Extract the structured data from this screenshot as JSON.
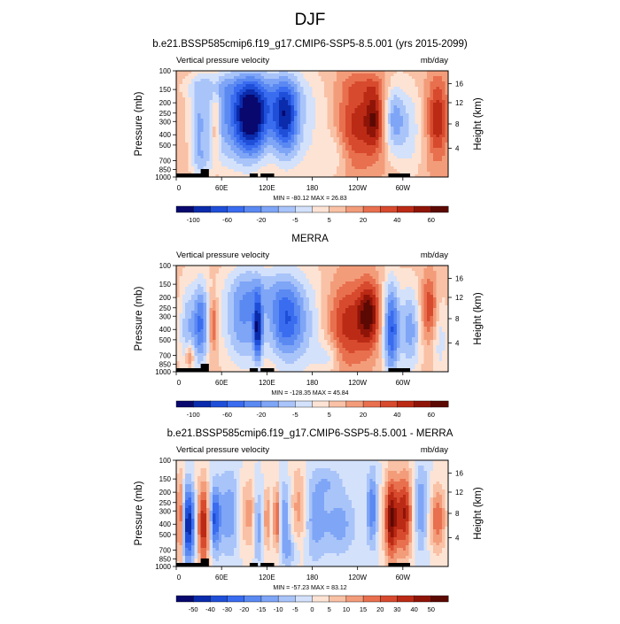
{
  "page": {
    "title": "DJF"
  },
  "chart_data": [
    {
      "type": "heatmap",
      "title": "b.e21.BSSP585cmip6.f19_g17.CMIP6-SSP5-8.5.001 (yrs 2015-2099)",
      "subtitle_left": "Vertical pressure velocity",
      "subtitle_right": "mb/day",
      "ylabel": "Pressure (mb)",
      "ylabel_right": "Height (km)",
      "x_ticks": [
        "0",
        "60E",
        "120E",
        "180",
        "120W",
        "60W"
      ],
      "y_ticks": [
        "100",
        "150",
        "200",
        "250",
        "300",
        "400",
        "500",
        "700",
        "850",
        "1000"
      ],
      "y_right_ticks": [
        "16",
        "12",
        "8",
        "4"
      ],
      "minmax": "MIN = -80.12   MAX = 26.83",
      "colorbar_labels": [
        "-100",
        "-60",
        "-20",
        "-5",
        "5",
        "20",
        "40",
        "60"
      ],
      "colorbar_levels": [
        -120,
        -100,
        -80,
        -60,
        -40,
        -20,
        -10,
        -5,
        0,
        5,
        10,
        20,
        30,
        40,
        50,
        60,
        80
      ],
      "field": {
        "background": 2,
        "blobs": [
          [
            0.08,
            0.55,
            0.03,
            0.45,
            -2.5
          ],
          [
            0.2,
            0.45,
            0.12,
            0.5,
            -4.5
          ],
          [
            0.28,
            0.45,
            0.06,
            0.35,
            -7.5
          ],
          [
            0.4,
            0.45,
            0.05,
            0.35,
            -6.5
          ],
          [
            0.35,
            0.2,
            0.14,
            0.25,
            -2
          ],
          [
            0.12,
            0.15,
            0.12,
            0.12,
            -1.5
          ],
          [
            0.47,
            0.55,
            0.12,
            0.6,
            -2
          ],
          [
            0.145,
            0.5,
            0.015,
            0.35,
            3
          ],
          [
            0.66,
            0.5,
            0.07,
            0.4,
            3.5
          ],
          [
            0.73,
            0.45,
            0.035,
            0.3,
            4
          ],
          [
            0.8,
            0.45,
            0.04,
            0.35,
            -4
          ],
          [
            0.86,
            0.55,
            0.05,
            0.5,
            -2.5
          ],
          [
            0.96,
            0.45,
            0.035,
            0.35,
            4
          ],
          [
            0.58,
            0.8,
            0.05,
            0.2,
            -1.5
          ],
          [
            0.7,
            0.15,
            0.1,
            0.1,
            1
          ],
          [
            0.1,
            0.85,
            0.04,
            0.15,
            -1.5
          ]
        ]
      }
    },
    {
      "type": "heatmap",
      "title": "MERRA",
      "subtitle_left": "Vertical pressure velocity",
      "subtitle_right": "mb/day",
      "ylabel": "Pressure (mb)",
      "ylabel_right": "Height (km)",
      "x_ticks": [
        "0",
        "60E",
        "120E",
        "180",
        "120W",
        "60W"
      ],
      "y_ticks": [
        "100",
        "150",
        "200",
        "250",
        "300",
        "400",
        "500",
        "700",
        "850",
        "1000"
      ],
      "y_right_ticks": [
        "16",
        "12",
        "8",
        "4"
      ],
      "minmax": "MIN = -128.35   MAX = 45.84",
      "colorbar_labels": [
        "-100",
        "-60",
        "-20",
        "-5",
        "5",
        "20",
        "40",
        "60"
      ],
      "colorbar_levels": [
        -120,
        -100,
        -80,
        -60,
        -40,
        -20,
        -10,
        -5,
        0,
        5,
        10,
        20,
        30,
        40,
        50,
        60,
        80
      ],
      "field": {
        "background": 1.5,
        "blobs": [
          [
            0.04,
            0.6,
            0.03,
            0.45,
            -3
          ],
          [
            0.09,
            0.55,
            0.03,
            0.4,
            -5.5
          ],
          [
            0.05,
            0.85,
            0.015,
            0.12,
            3.5
          ],
          [
            0.135,
            0.55,
            0.015,
            0.25,
            3.5
          ],
          [
            0.25,
            0.5,
            0.08,
            0.45,
            -4.5
          ],
          [
            0.3,
            0.6,
            0.015,
            0.3,
            -6
          ],
          [
            0.4,
            0.5,
            0.06,
            0.4,
            -5.5
          ],
          [
            0.48,
            0.55,
            0.08,
            0.5,
            -2.5
          ],
          [
            0.63,
            0.55,
            0.08,
            0.4,
            4
          ],
          [
            0.71,
            0.45,
            0.04,
            0.3,
            5
          ],
          [
            0.79,
            0.6,
            0.03,
            0.45,
            -6.5
          ],
          [
            0.86,
            0.6,
            0.04,
            0.4,
            -4
          ],
          [
            0.93,
            0.4,
            0.03,
            0.3,
            3.5
          ],
          [
            0.97,
            0.7,
            0.03,
            0.4,
            -2
          ],
          [
            0.3,
            0.2,
            0.1,
            0.2,
            -1.5
          ],
          [
            0.56,
            0.85,
            0.04,
            0.15,
            -2
          ]
        ]
      }
    },
    {
      "type": "heatmap",
      "title": "b.e21.BSSP585cmip6.f19_g17.CMIP6-SSP5-8.5.001 - MERRA",
      "subtitle_left": "Vertical pressure velocity",
      "subtitle_right": "mb/day",
      "ylabel": "Pressure (mb)",
      "ylabel_right": "Height (km)",
      "x_ticks": [
        "0",
        "60E",
        "120E",
        "180",
        "120W",
        "60W"
      ],
      "y_ticks": [
        "100",
        "150",
        "200",
        "250",
        "300",
        "400",
        "500",
        "700",
        "850",
        "1000"
      ],
      "y_right_ticks": [
        "16",
        "12",
        "8",
        "4"
      ],
      "minmax": "MIN = -57.23   MAX = 83.12",
      "colorbar_labels": [
        "-50",
        "-40",
        "-30",
        "-20",
        "-15",
        "-10",
        "-5",
        "0",
        "5",
        "10",
        "15",
        "20",
        "30",
        "40",
        "50"
      ],
      "colorbar_levels": [
        -60,
        -50,
        -40,
        -30,
        -20,
        -15,
        -10,
        -5,
        0,
        5,
        10,
        15,
        20,
        30,
        40,
        50,
        60
      ],
      "field": {
        "background": 0,
        "blobs": [
          [
            0.015,
            0.55,
            0.015,
            0.4,
            5
          ],
          [
            0.045,
            0.6,
            0.025,
            0.35,
            -7
          ],
          [
            0.1,
            0.6,
            0.025,
            0.4,
            6
          ],
          [
            0.14,
            0.55,
            0.02,
            0.3,
            -5
          ],
          [
            0.2,
            0.5,
            0.05,
            0.4,
            -3
          ],
          [
            0.26,
            0.5,
            0.04,
            0.35,
            3
          ],
          [
            0.3,
            0.6,
            0.015,
            0.35,
            -3.5
          ],
          [
            0.335,
            0.55,
            0.012,
            0.3,
            3
          ],
          [
            0.37,
            0.55,
            0.012,
            0.3,
            4.5
          ],
          [
            0.4,
            0.55,
            0.02,
            0.35,
            -3
          ],
          [
            0.45,
            0.45,
            0.03,
            0.4,
            2.5
          ],
          [
            0.51,
            0.55,
            0.04,
            0.4,
            -2.5
          ],
          [
            0.56,
            0.2,
            0.05,
            0.15,
            -1.5
          ],
          [
            0.6,
            0.6,
            0.06,
            0.3,
            -2.5
          ],
          [
            0.72,
            0.45,
            0.02,
            0.35,
            -4
          ],
          [
            0.79,
            0.55,
            0.025,
            0.4,
            7
          ],
          [
            0.84,
            0.5,
            0.03,
            0.4,
            6
          ],
          [
            0.9,
            0.45,
            0.03,
            0.4,
            -3
          ],
          [
            0.96,
            0.55,
            0.03,
            0.3,
            4
          ],
          [
            0.42,
            0.85,
            0.03,
            0.15,
            -2
          ]
        ]
      }
    }
  ]
}
